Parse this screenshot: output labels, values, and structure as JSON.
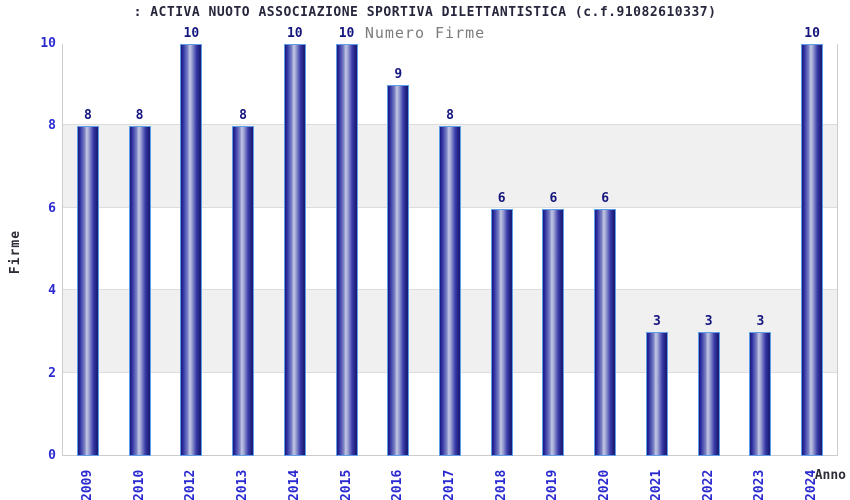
{
  "header": {
    "title": ": ACTIVA NUOTO ASSOCIAZIONE SPORTIVA DILETTANTISTICA (c.f.91082610337)",
    "subtitle": "Numero Firme"
  },
  "colors": {
    "tick_label": "#2a2ad0",
    "value_label": "#15157e",
    "title": "#26263c",
    "subtitle": "#7c7c7c",
    "axis_label": "#2e2e38",
    "bar_dark": "#1a1a78",
    "bar_highlight": "#c3c7e3",
    "bar_border": "#5f9de4",
    "band_gray": "#f0f0f0",
    "plot_border": "#cccccc"
  },
  "chart_data": {
    "type": "bar",
    "title": ": ACTIVA NUOTO ASSOCIAZIONE SPORTIVA DILETTANTISTICA (c.f.91082610337)",
    "subtitle": "Numero Firme",
    "categories": [
      "2009",
      "2010",
      "2012",
      "2013",
      "2014",
      "2015",
      "2016",
      "2017",
      "2018",
      "2019",
      "2020",
      "2021",
      "2022",
      "2023",
      "2024"
    ],
    "values": [
      8,
      8,
      10,
      8,
      10,
      10,
      9,
      8,
      6,
      6,
      6,
      3,
      3,
      3,
      10
    ],
    "xlabel": "Anno",
    "ylabel": "Firme",
    "ylim": [
      0,
      10
    ],
    "yticks": [
      0,
      2,
      4,
      6,
      8,
      10
    ],
    "grid": "horizontal gridlines with alternating white/gray bands",
    "legend": "none",
    "bar_labels_shown": true
  }
}
